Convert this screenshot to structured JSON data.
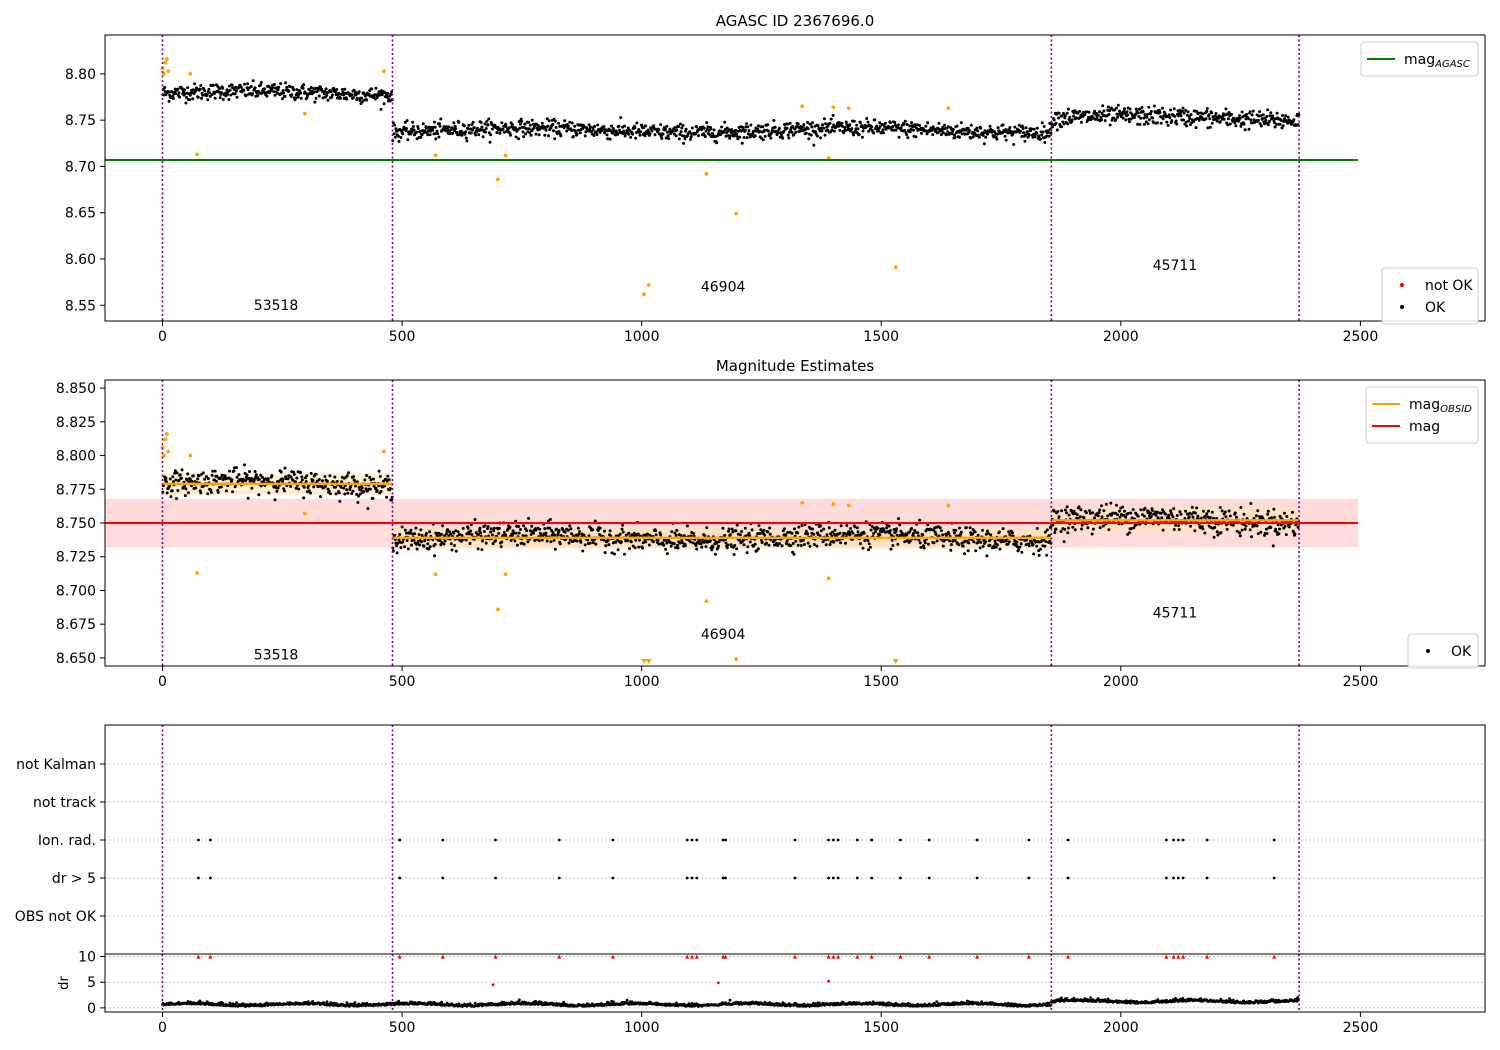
{
  "figure": {
    "title": "AGASC ID 2367696.0"
  },
  "colors": {
    "ok": "#000000",
    "not_ok": "#ff0000",
    "suspect": "#ffa500",
    "agasc_line": "#008000",
    "mag_line": "#ff0000",
    "mag_band": "#ffcccc",
    "obs_line": "#ffa500",
    "obs_band": "#ffe4b5",
    "boundary": "#800080",
    "grid": "#b0b0b0"
  },
  "chart_data": [
    {
      "type": "scatter",
      "title": "",
      "xlim": [
        -120,
        2760
      ],
      "ylim": [
        8.533,
        8.842
      ],
      "x_ticks": [
        0,
        500,
        1000,
        1500,
        2000,
        2500
      ],
      "y_ticks": [
        8.55,
        8.6,
        8.65,
        8.7,
        8.75,
        8.8
      ],
      "y_tick_labels": [
        "8.55",
        "8.60",
        "8.65",
        "8.70",
        "8.75",
        "8.80"
      ],
      "obs_boundaries": [
        0,
        480,
        1855,
        2372
      ],
      "obs_labels": [
        {
          "text": "53518",
          "x": 237,
          "y": 8.545
        },
        {
          "text": "46904",
          "x": 1170,
          "y": 8.565
        },
        {
          "text": "45711",
          "x": 2113,
          "y": 8.588
        }
      ],
      "agasc_mag": 8.707,
      "agasc_x_range": [
        -120,
        2495
      ],
      "segments": [
        {
          "x": [
            0,
            480
          ],
          "mean": 8.779,
          "spread": 0.008
        },
        {
          "x": [
            480,
            1855
          ],
          "mean": 8.739,
          "spread": 0.008
        },
        {
          "x": [
            1855,
            2372
          ],
          "mean": 8.752,
          "spread": 0.009
        }
      ],
      "outliers": [
        [
          0,
          8.806
        ],
        [
          3,
          8.8
        ],
        [
          6,
          8.812
        ],
        [
          9,
          8.816
        ],
        [
          12,
          8.803
        ],
        [
          58,
          8.8
        ],
        [
          72,
          8.713
        ],
        [
          297,
          8.757
        ],
        [
          462,
          8.803
        ],
        [
          570,
          8.712
        ],
        [
          700,
          8.686
        ],
        [
          716,
          8.712
        ],
        [
          1005,
          8.562
        ],
        [
          1015,
          8.572
        ],
        [
          1135,
          8.692
        ],
        [
          1197,
          8.649
        ],
        [
          1335,
          8.765
        ],
        [
          1390,
          8.709
        ],
        [
          1400,
          8.764
        ],
        [
          1432,
          8.763
        ],
        [
          1530,
          8.591
        ],
        [
          1640,
          8.763
        ]
      ],
      "legend_top": [
        {
          "label": "mag",
          "sub": "AGASC",
          "kind": "line",
          "color_key": "agasc_line"
        }
      ],
      "legend_bottom": [
        {
          "label": "not OK",
          "kind": "dot",
          "color_key": "not_ok"
        },
        {
          "label": "OK",
          "kind": "dot",
          "color_key": "ok"
        }
      ]
    },
    {
      "type": "scatter",
      "title": "Magnitude Estimates",
      "xlim": [
        -120,
        2760
      ],
      "ylim": [
        8.644,
        8.856
      ],
      "x_ticks": [
        0,
        500,
        1000,
        1500,
        2000,
        2500
      ],
      "y_ticks": [
        8.65,
        8.675,
        8.7,
        8.725,
        8.75,
        8.775,
        8.8,
        8.825,
        8.85
      ],
      "y_tick_labels": [
        "8.650",
        "8.675",
        "8.700",
        "8.725",
        "8.750",
        "8.775",
        "8.800",
        "8.825",
        "8.850"
      ],
      "obs_boundaries": [
        0,
        480,
        1855,
        2372
      ],
      "obs_labels": [
        {
          "text": "53518",
          "x": 237,
          "y": 8.649
        },
        {
          "text": "46904",
          "x": 1170,
          "y": 8.664
        },
        {
          "text": "45711",
          "x": 2113,
          "y": 8.68
        }
      ],
      "mag": 8.75,
      "mag_band": [
        8.732,
        8.768
      ],
      "mag_x_range": [
        -120,
        2495
      ],
      "segments": [
        {
          "x": [
            0,
            480
          ],
          "mean": 8.779,
          "spread": 0.008,
          "band": [
            8.771,
            8.787
          ]
        },
        {
          "x": [
            480,
            1855
          ],
          "mean": 8.739,
          "spread": 0.008,
          "band": [
            8.731,
            8.747
          ]
        },
        {
          "x": [
            1855,
            2372
          ],
          "mean": 8.752,
          "spread": 0.009,
          "band": [
            8.743,
            8.761
          ]
        }
      ],
      "outliers": [
        [
          0,
          8.806
        ],
        [
          3,
          8.8
        ],
        [
          6,
          8.812
        ],
        [
          9,
          8.816
        ],
        [
          12,
          8.803
        ],
        [
          58,
          8.8
        ],
        [
          72,
          8.713
        ],
        [
          297,
          8.757
        ],
        [
          462,
          8.803
        ],
        [
          570,
          8.712
        ],
        [
          700,
          8.686
        ],
        [
          716,
          8.712
        ],
        [
          1135,
          8.692
        ],
        [
          1197,
          8.649
        ],
        [
          1335,
          8.765
        ],
        [
          1390,
          8.709
        ],
        [
          1400,
          8.764
        ],
        [
          1432,
          8.763
        ],
        [
          1640,
          8.763
        ]
      ],
      "clipped_markers": [
        1005,
        1015,
        1530
      ],
      "legend_top": [
        {
          "label": "mag",
          "sub": "OBSID",
          "kind": "line",
          "color_key": "obs_line"
        },
        {
          "label": "mag",
          "kind": "line",
          "color_key": "mag_line"
        }
      ],
      "legend_bottom": [
        {
          "label": "OK",
          "kind": "dot",
          "color_key": "ok"
        }
      ]
    },
    {
      "type": "scatter",
      "title": "",
      "xlim": [
        -120,
        2760
      ],
      "categories": [
        "not Kalman",
        "not track",
        "Ion. rad.",
        "dr > 5",
        "OBS not OK"
      ],
      "flag_x": [
        75,
        100,
        495,
        585,
        695,
        828,
        940,
        1095,
        1105,
        1115,
        1170,
        1175,
        1320,
        1390,
        1400,
        1410,
        1450,
        1480,
        1540,
        1600,
        1700,
        1808,
        1890,
        2095,
        2110,
        2120,
        2130,
        2180,
        2320
      ],
      "flag_categories": [
        "Ion. rad.",
        "dr > 5"
      ],
      "obs_boundaries": [
        0,
        480,
        1855,
        2372
      ]
    },
    {
      "type": "scatter",
      "title": "",
      "xlim": [
        -120,
        2760
      ],
      "ylim": [
        -0.8,
        10.5
      ],
      "x_ticks": [
        0,
        500,
        1000,
        1500,
        2000,
        2500
      ],
      "y_ticks": [
        0,
        5,
        10
      ],
      "y_tick_labels": [
        "0",
        "5",
        "10"
      ],
      "ylabel": "dr",
      "clip_value": 10,
      "red_points_at_clip": [
        75,
        100,
        495,
        585,
        695,
        828,
        940,
        1095,
        1105,
        1115,
        1170,
        1175,
        1320,
        1390,
        1400,
        1410,
        1450,
        1480,
        1540,
        1600,
        1700,
        1808,
        1890,
        2095,
        2110,
        2120,
        2130,
        2180,
        2320
      ],
      "red_points_other": [
        [
          690,
          4.5
        ],
        [
          1160,
          4.9
        ],
        [
          1390,
          5.2
        ]
      ],
      "obs_boundaries": [
        0,
        480,
        1855,
        2372
      ]
    }
  ],
  "x_tick_labels": [
    "0",
    "500",
    "1000",
    "1500",
    "2000",
    "2500"
  ]
}
